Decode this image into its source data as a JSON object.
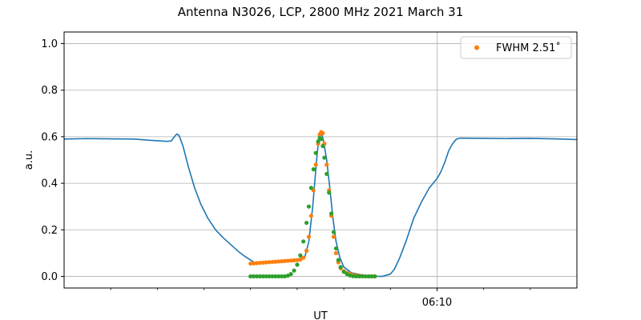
{
  "chart_data": {
    "type": "line",
    "title": "Antenna N3026, LCP, 2800 MHz 2021 March 31",
    "xlabel": "UT",
    "ylabel": "a.u.",
    "ylim": [
      -0.05,
      1.05
    ],
    "yticks": [
      0.0,
      0.2,
      0.4,
      0.6,
      0.8,
      1.0
    ],
    "ytick_labels": [
      "0.0",
      "0.2",
      "0.4",
      "0.6",
      "0.8",
      "1.0"
    ],
    "xlim": [
      "06:02:00",
      "06:13:00"
    ],
    "xtick_major": [
      {
        "time": "06:10:00",
        "label": "06:10"
      }
    ],
    "xtick_minor": [
      "06:03:00",
      "06:04:00",
      "06:05:00",
      "06:06:00",
      "06:07:00",
      "06:08:00",
      "06:09:00",
      "06:11:00",
      "06:12:00"
    ],
    "grid": true,
    "legend": {
      "position": "top-right",
      "entries": [
        {
          "label": "FWHM 2.51˚",
          "color": "#ff7f0e"
        }
      ]
    },
    "series": [
      {
        "color": "#1f77b4",
        "marker": "line",
        "points": [
          [
            "06:02:00",
            0.59
          ],
          [
            "06:02:30",
            0.592
          ],
          [
            "06:03:00",
            0.591
          ],
          [
            "06:03:30",
            0.59
          ],
          [
            "06:03:50",
            0.585
          ],
          [
            "06:04:12",
            0.58
          ],
          [
            "06:04:18",
            0.582
          ],
          [
            "06:04:22",
            0.6
          ],
          [
            "06:04:25",
            0.612
          ],
          [
            "06:04:28",
            0.605
          ],
          [
            "06:04:33",
            0.56
          ],
          [
            "06:04:40",
            0.47
          ],
          [
            "06:04:48",
            0.38
          ],
          [
            "06:04:56",
            0.31
          ],
          [
            "06:05:05",
            0.25
          ],
          [
            "06:05:15",
            0.2
          ],
          [
            "06:05:25",
            0.165
          ],
          [
            "06:05:35",
            0.135
          ],
          [
            "06:05:45",
            0.105
          ],
          [
            "06:05:53",
            0.085
          ],
          [
            "06:06:00",
            0.07
          ],
          [
            "06:06:05",
            0.06
          ],
          [
            "06:06:10",
            0.058
          ],
          [
            "06:06:30",
            0.06
          ],
          [
            "06:06:50",
            0.065
          ],
          [
            "06:07:00",
            0.07
          ],
          [
            "06:07:10",
            0.085
          ],
          [
            "06:07:15",
            0.15
          ],
          [
            "06:07:20",
            0.3
          ],
          [
            "06:07:25",
            0.5
          ],
          [
            "06:07:28",
            0.6
          ],
          [
            "06:07:31",
            0.62
          ],
          [
            "06:07:34",
            0.58
          ],
          [
            "06:07:38",
            0.5
          ],
          [
            "06:07:42",
            0.38
          ],
          [
            "06:07:46",
            0.25
          ],
          [
            "06:07:50",
            0.15
          ],
          [
            "06:07:55",
            0.08
          ],
          [
            "06:08:00",
            0.04
          ],
          [
            "06:08:10",
            0.015
          ],
          [
            "06:08:30",
            0.002
          ],
          [
            "06:08:40",
            0.0
          ],
          [
            "06:08:50",
            0.0
          ],
          [
            "06:09:00",
            0.01
          ],
          [
            "06:09:05",
            0.03
          ],
          [
            "06:09:12",
            0.08
          ],
          [
            "06:09:20",
            0.15
          ],
          [
            "06:09:30",
            0.25
          ],
          [
            "06:09:40",
            0.32
          ],
          [
            "06:09:50",
            0.38
          ],
          [
            "06:10:00",
            0.42
          ],
          [
            "06:10:05",
            0.45
          ],
          [
            "06:10:10",
            0.49
          ],
          [
            "06:10:15",
            0.54
          ],
          [
            "06:10:20",
            0.57
          ],
          [
            "06:10:25",
            0.59
          ],
          [
            "06:10:30",
            0.594
          ],
          [
            "06:11:00",
            0.593
          ],
          [
            "06:11:30",
            0.592
          ],
          [
            "06:12:00",
            0.593
          ],
          [
            "06:12:30",
            0.591
          ],
          [
            "06:13:00",
            0.588
          ]
        ]
      },
      {
        "name": "FWHM 2.51˚",
        "color": "#ff7f0e",
        "marker": "dot",
        "points": [
          [
            "06:06:00",
            0.055
          ],
          [
            "06:06:04",
            0.056
          ],
          [
            "06:06:08",
            0.057
          ],
          [
            "06:06:12",
            0.058
          ],
          [
            "06:06:16",
            0.059
          ],
          [
            "06:06:20",
            0.06
          ],
          [
            "06:06:24",
            0.061
          ],
          [
            "06:06:28",
            0.062
          ],
          [
            "06:06:32",
            0.063
          ],
          [
            "06:06:36",
            0.064
          ],
          [
            "06:06:40",
            0.065
          ],
          [
            "06:06:44",
            0.066
          ],
          [
            "06:06:48",
            0.067
          ],
          [
            "06:06:52",
            0.068
          ],
          [
            "06:06:56",
            0.069
          ],
          [
            "06:07:00",
            0.07
          ],
          [
            "06:07:04",
            0.072
          ],
          [
            "06:07:08",
            0.08
          ],
          [
            "06:07:12",
            0.11
          ],
          [
            "06:07:15",
            0.17
          ],
          [
            "06:07:18",
            0.26
          ],
          [
            "06:07:21",
            0.37
          ],
          [
            "06:07:24",
            0.48
          ],
          [
            "06:07:27",
            0.57
          ],
          [
            "06:07:29",
            0.61
          ],
          [
            "06:07:31",
            0.62
          ],
          [
            "06:07:33",
            0.615
          ],
          [
            "06:07:35",
            0.57
          ],
          [
            "06:07:38",
            0.48
          ],
          [
            "06:07:41",
            0.37
          ],
          [
            "06:07:44",
            0.26
          ],
          [
            "06:07:47",
            0.17
          ],
          [
            "06:07:50",
            0.1
          ],
          [
            "06:07:53",
            0.06
          ],
          [
            "06:07:56",
            0.035
          ],
          [
            "06:08:00",
            0.022
          ],
          [
            "06:08:04",
            0.015
          ],
          [
            "06:08:08",
            0.01
          ],
          [
            "06:08:12",
            0.006
          ],
          [
            "06:08:16",
            0.004
          ],
          [
            "06:08:20",
            0.002
          ],
          [
            "06:08:24",
            0.001
          ],
          [
            "06:08:28",
            0.0
          ],
          [
            "06:08:32",
            0.0
          ],
          [
            "06:08:36",
            0.0
          ],
          [
            "06:08:40",
            0.0
          ]
        ]
      },
      {
        "color": "#2ca02c",
        "marker": "dot",
        "points": [
          [
            "06:06:00",
            0.0
          ],
          [
            "06:06:04",
            0.0
          ],
          [
            "06:06:08",
            0.0
          ],
          [
            "06:06:12",
            0.0
          ],
          [
            "06:06:16",
            0.0
          ],
          [
            "06:06:20",
            0.0
          ],
          [
            "06:06:24",
            0.0
          ],
          [
            "06:06:28",
            0.0
          ],
          [
            "06:06:32",
            0.0
          ],
          [
            "06:06:36",
            0.0
          ],
          [
            "06:06:40",
            0.0
          ],
          [
            "06:06:44",
            0.0
          ],
          [
            "06:06:48",
            0.003
          ],
          [
            "06:06:52",
            0.01
          ],
          [
            "06:06:56",
            0.025
          ],
          [
            "06:07:00",
            0.05
          ],
          [
            "06:07:04",
            0.09
          ],
          [
            "06:07:08",
            0.15
          ],
          [
            "06:07:12",
            0.23
          ],
          [
            "06:07:15",
            0.3
          ],
          [
            "06:07:18",
            0.38
          ],
          [
            "06:07:21",
            0.46
          ],
          [
            "06:07:24",
            0.53
          ],
          [
            "06:07:27",
            0.58
          ],
          [
            "06:07:29",
            0.595
          ],
          [
            "06:07:31",
            0.59
          ],
          [
            "06:07:33",
            0.56
          ],
          [
            "06:07:35",
            0.51
          ],
          [
            "06:07:38",
            0.44
          ],
          [
            "06:07:41",
            0.36
          ],
          [
            "06:07:44",
            0.27
          ],
          [
            "06:07:47",
            0.19
          ],
          [
            "06:07:50",
            0.12
          ],
          [
            "06:07:53",
            0.07
          ],
          [
            "06:07:56",
            0.04
          ],
          [
            "06:08:00",
            0.02
          ],
          [
            "06:08:04",
            0.01
          ],
          [
            "06:08:08",
            0.004
          ],
          [
            "06:08:12",
            0.001
          ],
          [
            "06:08:16",
            0.0
          ],
          [
            "06:08:20",
            0.0
          ],
          [
            "06:08:24",
            0.0
          ],
          [
            "06:08:28",
            0.0
          ],
          [
            "06:08:32",
            0.0
          ],
          [
            "06:08:36",
            0.0
          ],
          [
            "06:08:40",
            0.0
          ]
        ]
      }
    ]
  }
}
